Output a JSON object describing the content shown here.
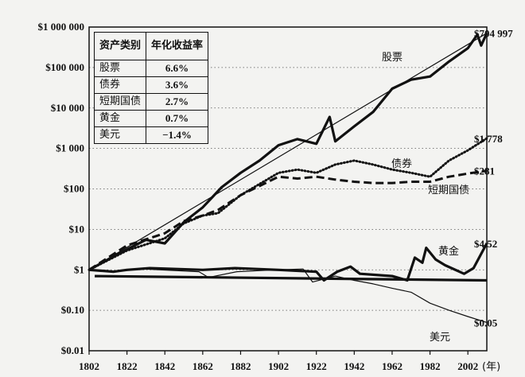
{
  "chart_data": {
    "type": "line",
    "yscale": "log",
    "ylim": [
      0.01,
      1000000
    ],
    "xlim": [
      1802,
      2012
    ],
    "x_ticks": [
      1802,
      1822,
      1842,
      1862,
      1882,
      1902,
      1922,
      1942,
      1962,
      1982,
      2002
    ],
    "x_unit": "(年)",
    "y_ticks": [
      {
        "value": 1000000,
        "label": "$1 000 000"
      },
      {
        "value": 100000,
        "label": "$100 000"
      },
      {
        "value": 10000,
        "label": "$10 000"
      },
      {
        "value": 1000,
        "label": "$1 000"
      },
      {
        "value": 100,
        "label": "$100"
      },
      {
        "value": 10,
        "label": "$10"
      },
      {
        "value": 1,
        "label": "$1"
      },
      {
        "value": 0.1,
        "label": "$0.10"
      },
      {
        "value": 0.01,
        "label": "$0.01"
      }
    ],
    "grid": "horizontal-dotted",
    "table": {
      "headers": [
        "资产类别",
        "年化收益率"
      ],
      "rows": [
        [
          "股票",
          "6.6%"
        ],
        [
          "债券",
          "3.6%"
        ],
        [
          "短期国债",
          "2.7%"
        ],
        [
          "黄金",
          "0.7%"
        ],
        [
          "美元",
          "−1.4%"
        ]
      ]
    },
    "series": [
      {
        "name": "股票",
        "end_label": "$704 997",
        "style": "solid-thick",
        "points": [
          [
            1802,
            1
          ],
          [
            1812,
            1.8
          ],
          [
            1822,
            3.2
          ],
          [
            1832,
            5.5
          ],
          [
            1842,
            4.5
          ],
          [
            1852,
            15
          ],
          [
            1862,
            35
          ],
          [
            1872,
            110
          ],
          [
            1882,
            250
          ],
          [
            1892,
            500
          ],
          [
            1902,
            1200
          ],
          [
            1912,
            1700
          ],
          [
            1922,
            1300
          ],
          [
            1929,
            6000
          ],
          [
            1932,
            1500
          ],
          [
            1942,
            3500
          ],
          [
            1952,
            8000
          ],
          [
            1962,
            30000
          ],
          [
            1972,
            50000
          ],
          [
            1982,
            60000
          ],
          [
            1992,
            140000
          ],
          [
            2002,
            300000
          ],
          [
            2007,
            650000
          ],
          [
            2009,
            350000
          ],
          [
            2012,
            704997
          ]
        ]
      },
      {
        "name": "股票趋势",
        "style": "solid-thin",
        "points": [
          [
            1802,
            1
          ],
          [
            2012,
            704997
          ]
        ]
      },
      {
        "name": "债券",
        "end_label": "$1 778",
        "style": "dotted",
        "points": [
          [
            1802,
            1
          ],
          [
            1822,
            3
          ],
          [
            1842,
            6
          ],
          [
            1852,
            14
          ],
          [
            1862,
            22
          ],
          [
            1870,
            25
          ],
          [
            1882,
            70
          ],
          [
            1902,
            250
          ],
          [
            1912,
            300
          ],
          [
            1922,
            250
          ],
          [
            1932,
            400
          ],
          [
            1942,
            500
          ],
          [
            1952,
            400
          ],
          [
            1962,
            300
          ],
          [
            1972,
            250
          ],
          [
            1982,
            200
          ],
          [
            1992,
            500
          ],
          [
            2002,
            900
          ],
          [
            2012,
            1778
          ]
        ]
      },
      {
        "name": "短期国债",
        "end_label": "$281",
        "style": "dashed",
        "points": [
          [
            1802,
            1
          ],
          [
            1822,
            4
          ],
          [
            1842,
            8
          ],
          [
            1852,
            16
          ],
          [
            1862,
            22
          ],
          [
            1870,
            30
          ],
          [
            1882,
            70
          ],
          [
            1902,
            200
          ],
          [
            1912,
            180
          ],
          [
            1922,
            200
          ],
          [
            1932,
            170
          ],
          [
            1942,
            150
          ],
          [
            1952,
            140
          ],
          [
            1962,
            140
          ],
          [
            1972,
            150
          ],
          [
            1982,
            150
          ],
          [
            1992,
            200
          ],
          [
            2002,
            240
          ],
          [
            2012,
            281
          ]
        ]
      },
      {
        "name": "黄金",
        "end_label": "$4.52",
        "style": "solid-thick",
        "points": [
          [
            1802,
            1
          ],
          [
            1815,
            0.9
          ],
          [
            1822,
            1
          ],
          [
            1834,
            1.1
          ],
          [
            1862,
            1
          ],
          [
            1879,
            1.1
          ],
          [
            1902,
            1
          ],
          [
            1922,
            0.9
          ],
          [
            1926,
            0.55
          ],
          [
            1933,
            0.9
          ],
          [
            1940,
            1.2
          ],
          [
            1945,
            0.8
          ],
          [
            1962,
            0.7
          ],
          [
            1970,
            0.55
          ],
          [
            1974,
            2
          ],
          [
            1978,
            1.5
          ],
          [
            1980,
            3.5
          ],
          [
            1985,
            1.8
          ],
          [
            1990,
            1.3
          ],
          [
            2000,
            0.8
          ],
          [
            2005,
            1.1
          ],
          [
            2012,
            4.52
          ]
        ]
      },
      {
        "name": "黄金基准",
        "style": "solid-thick",
        "points": [
          [
            1805,
            0.7
          ],
          [
            2012,
            0.55
          ]
        ]
      },
      {
        "name": "美元",
        "end_label": "$0.05",
        "style": "solid-thin",
        "points": [
          [
            1802,
            1
          ],
          [
            1815,
            0.9
          ],
          [
            1830,
            1.05
          ],
          [
            1860,
            0.9
          ],
          [
            1865,
            0.65
          ],
          [
            1880,
            0.9
          ],
          [
            1900,
            1
          ],
          [
            1915,
            1.05
          ],
          [
            1920,
            0.5
          ],
          [
            1932,
            0.7
          ],
          [
            1942,
            0.55
          ],
          [
            1952,
            0.45
          ],
          [
            1962,
            0.35
          ],
          [
            1972,
            0.28
          ],
          [
            1982,
            0.15
          ],
          [
            1992,
            0.1
          ],
          [
            2002,
            0.07
          ],
          [
            2012,
            0.05
          ]
        ]
      }
    ]
  }
}
